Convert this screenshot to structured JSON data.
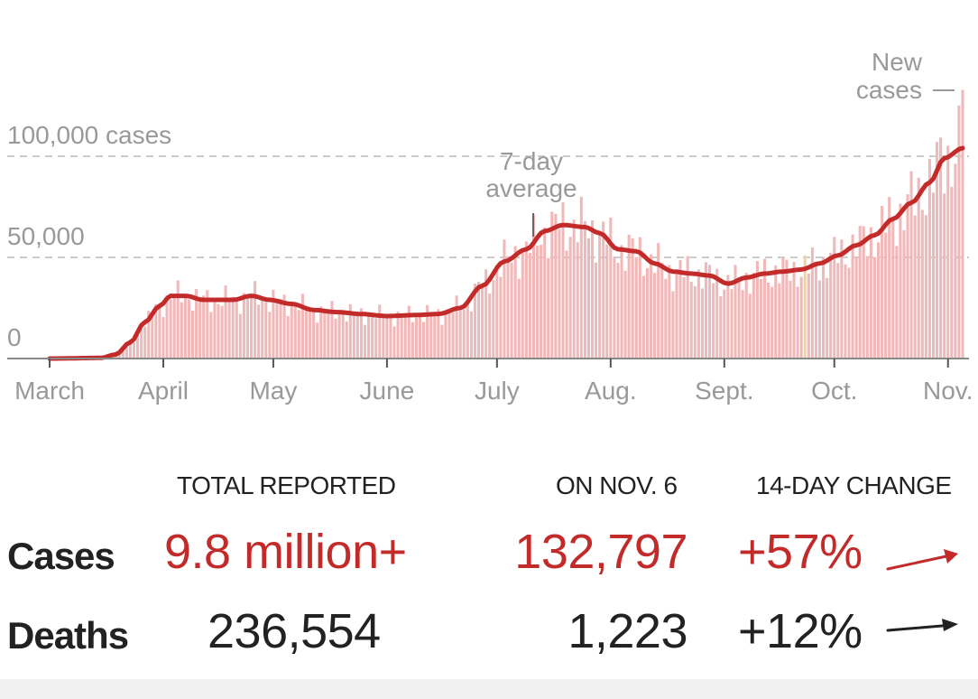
{
  "chart_data": {
    "type": "bar",
    "title": "",
    "xlabel": "",
    "ylabel": "",
    "ylim": [
      0,
      140000
    ],
    "y_ticks": [
      {
        "value": 0,
        "label": "0"
      },
      {
        "value": 50000,
        "label": "50,000"
      },
      {
        "value": 100000,
        "label": "100,000 cases"
      }
    ],
    "month_ticks": [
      {
        "day": 0,
        "label": "March"
      },
      {
        "day": 31,
        "label": "April"
      },
      {
        "day": 61,
        "label": "May"
      },
      {
        "day": 92,
        "label": "June"
      },
      {
        "day": 122,
        "label": "July"
      },
      {
        "day": 153,
        "label": "Aug."
      },
      {
        "day": 184,
        "label": "Sept."
      },
      {
        "day": 214,
        "label": "Oct."
      },
      {
        "day": 245,
        "label": "Nov."
      }
    ],
    "start_date": "March 1",
    "avg_anchor_days": [
      0,
      14,
      18,
      22,
      26,
      30,
      33,
      37,
      42,
      50,
      55,
      60,
      66,
      72,
      78,
      85,
      92,
      100,
      106,
      112,
      118,
      124,
      130,
      135,
      140,
      146,
      150,
      155,
      160,
      165,
      170,
      175,
      180,
      185,
      190,
      195,
      200,
      205,
      210,
      215,
      220,
      225,
      230,
      235,
      240,
      244,
      249
    ],
    "avg_anchor_values": [
      0,
      300,
      2000,
      8000,
      18000,
      26000,
      31000,
      31000,
      29000,
      29000,
      31000,
      29000,
      27000,
      24000,
      23000,
      22000,
      21000,
      21500,
      22000,
      25000,
      36000,
      48000,
      54000,
      63000,
      66000,
      65000,
      62000,
      54000,
      53000,
      47000,
      43000,
      42000,
      41000,
      37000,
      40000,
      42000,
      43000,
      44000,
      47000,
      51000,
      56000,
      61000,
      69000,
      77000,
      87000,
      99000,
      104000
    ],
    "series": [
      {
        "name": "New cases",
        "values": "daily bars, estimated around the 7-day average"
      },
      {
        "name": "7-day average",
        "values": "smooth line through avg_anchor_values"
      }
    ],
    "last_day_cases": 132797,
    "annotations": {
      "avg_label_line1": "7-day",
      "avg_label_line2": "average",
      "new_label_line1": "New",
      "new_label_line2": "cases"
    },
    "colors": {
      "bar": "#f0b8b8",
      "line": "#c32b2b",
      "highlight_bar": "#f6d29b",
      "grid": "#cccccc",
      "axis_text": "#999999"
    }
  },
  "table": {
    "headers": {
      "total": "TOTAL REPORTED",
      "day": "ON NOV. 6",
      "change": "14-DAY CHANGE"
    },
    "rows": [
      {
        "label": "Cases",
        "total": "9.8 million+",
        "day": "132,797",
        "change": "+57%",
        "trend": "up",
        "color": "#c32b2b"
      },
      {
        "label": "Deaths",
        "total": "236,554",
        "day": "1,223",
        "change": "+12%",
        "trend": "slight-up",
        "color": "#222222"
      }
    ]
  }
}
